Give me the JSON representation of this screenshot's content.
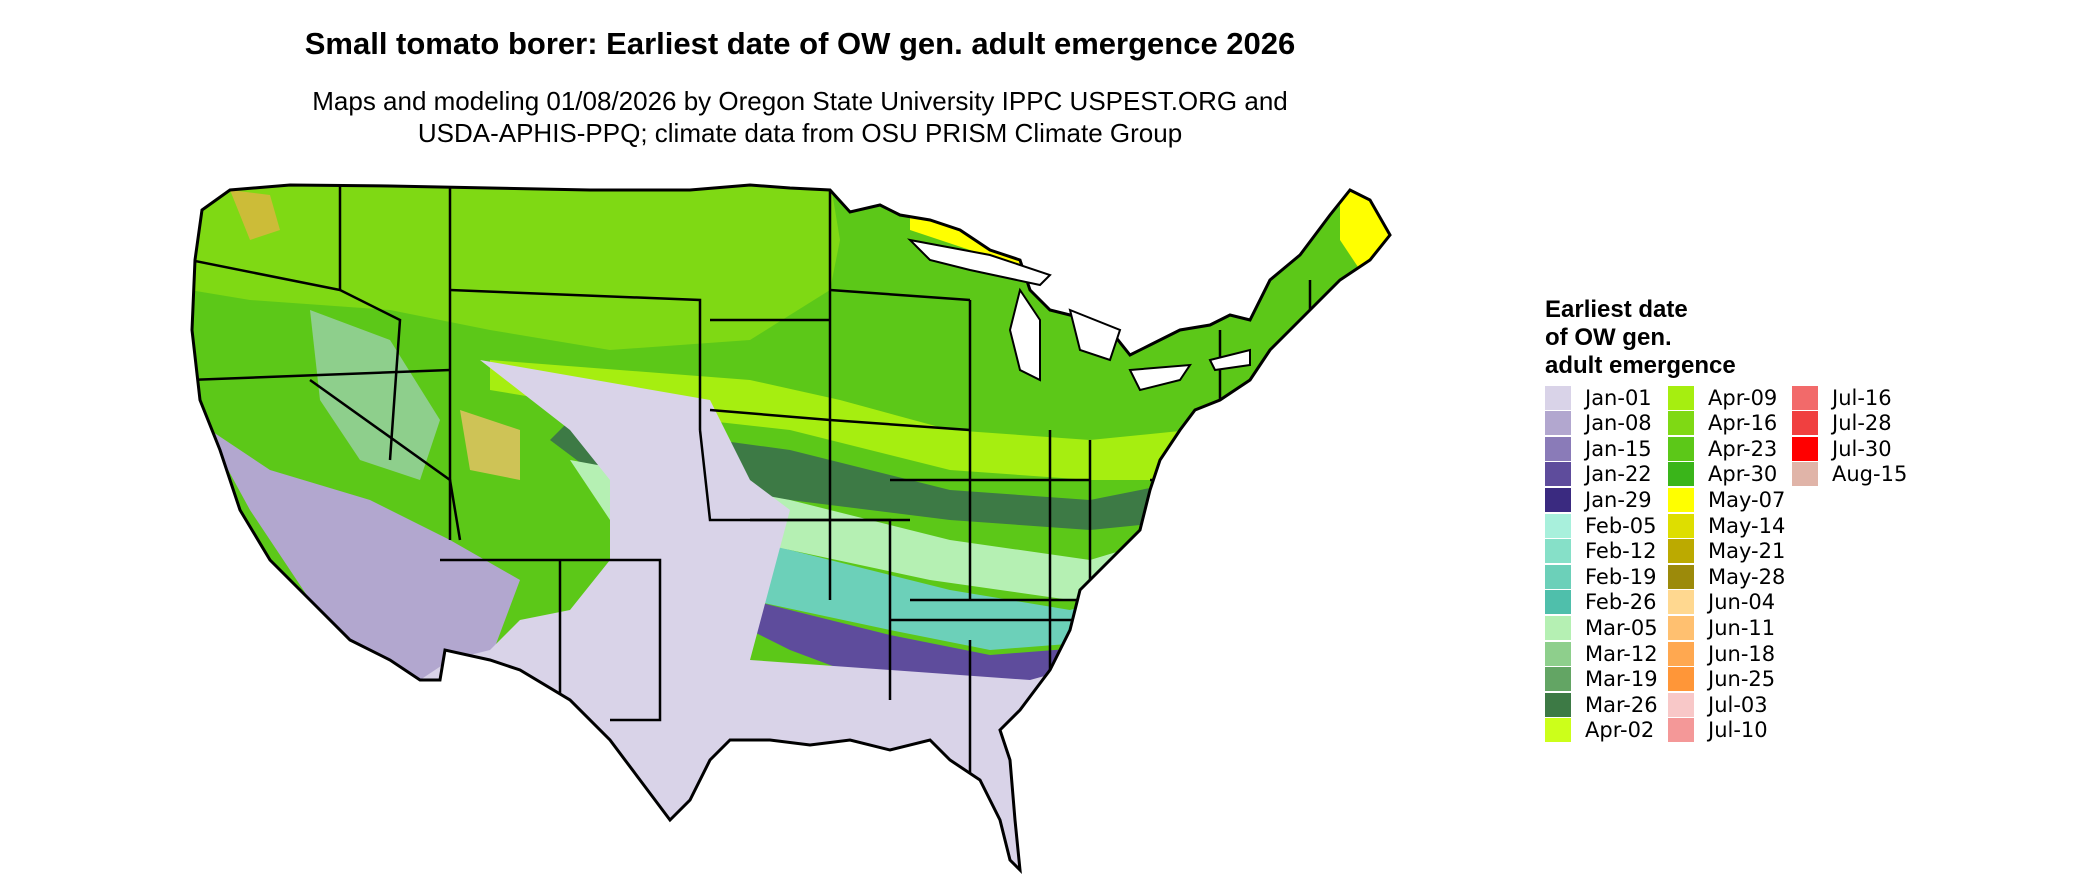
{
  "title": "Small tomato borer: Earliest date of OW gen. adult emergence 2026",
  "subtitle_line1": "Maps and modeling 01/08/2026 by Oregon State University IPPC USPEST.ORG and",
  "subtitle_line2": "USDA-APHIS-PPQ; climate data from OSU PRISM Climate Group",
  "legend": {
    "title_lines": [
      "Earliest date",
      "of OW gen.",
      "adult emergence"
    ],
    "items": [
      {
        "label": "Jan-01",
        "color": "#d9d3e8"
      },
      {
        "label": "Jan-08",
        "color": "#b2a7cf"
      },
      {
        "label": "Jan-15",
        "color": "#8a7bb8"
      },
      {
        "label": "Jan-22",
        "color": "#5e4c9c"
      },
      {
        "label": "Jan-29",
        "color": "#3a2a80"
      },
      {
        "label": "Feb-05",
        "color": "#a8f0dc"
      },
      {
        "label": "Feb-12",
        "color": "#86e0c8"
      },
      {
        "label": "Feb-19",
        "color": "#6cd0b9"
      },
      {
        "label": "Feb-26",
        "color": "#4fbfab"
      },
      {
        "label": "Mar-05",
        "color": "#b5f0b3"
      },
      {
        "label": "Mar-12",
        "color": "#8ecf8c"
      },
      {
        "label": "Mar-19",
        "color": "#63a564"
      },
      {
        "label": "Mar-26",
        "color": "#3d7a45"
      },
      {
        "label": "Apr-02",
        "color": "#ccff1a"
      },
      {
        "label": "Apr-09",
        "color": "#a6ee10"
      },
      {
        "label": "Apr-16",
        "color": "#7fd914"
      },
      {
        "label": "Apr-23",
        "color": "#5cc818"
      },
      {
        "label": "Apr-30",
        "color": "#3ab51a"
      },
      {
        "label": "May-07",
        "color": "#ffff00"
      },
      {
        "label": "May-14",
        "color": "#dede00"
      },
      {
        "label": "May-21",
        "color": "#bcaa00"
      },
      {
        "label": "May-28",
        "color": "#9c8a0a"
      },
      {
        "label": "Jun-04",
        "color": "#ffd890"
      },
      {
        "label": "Jun-11",
        "color": "#ffc070"
      },
      {
        "label": "Jun-18",
        "color": "#ffa850"
      },
      {
        "label": "Jun-25",
        "color": "#ff9638"
      },
      {
        "label": "Jul-03",
        "color": "#f8c8c8"
      },
      {
        "label": "Jul-10",
        "color": "#f49898"
      },
      {
        "label": "Jul-16",
        "color": "#f26a6a"
      },
      {
        "label": "Jul-28",
        "color": "#f04040"
      },
      {
        "label": "Jul-30",
        "color": "#ff0000"
      },
      {
        "label": "Aug-15",
        "color": "#e0b4a8"
      }
    ]
  }
}
